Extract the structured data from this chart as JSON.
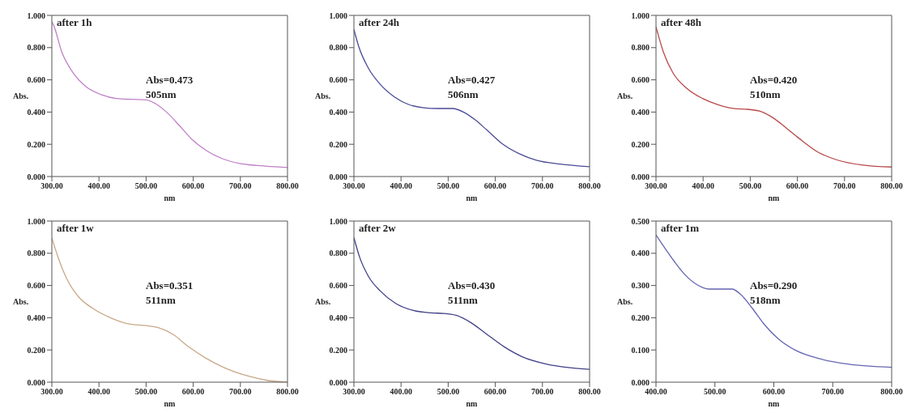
{
  "chart_data": [
    {
      "type": "line",
      "title": "after 1h",
      "xlabel": "nm",
      "ylabel": "Abs.",
      "marker": "none",
      "x": [
        300,
        303,
        322,
        341,
        373,
        405,
        437,
        469,
        500,
        520,
        545,
        571,
        596,
        628,
        660,
        698,
        736,
        800
      ],
      "series": [
        {
          "color": "#c080c8",
          "values": [
            0.96,
            0.944,
            0.766,
            0.661,
            0.556,
            0.508,
            0.484,
            0.479,
            0.476,
            0.452,
            0.395,
            0.315,
            0.234,
            0.161,
            0.113,
            0.081,
            0.068,
            0.056
          ]
        }
      ],
      "xlim": [
        300,
        800
      ],
      "ylim": [
        0,
        1
      ],
      "xticks": [
        {
          "value": 300,
          "label": "300.00"
        },
        {
          "value": 400,
          "label": "400.00"
        },
        {
          "value": 500,
          "label": "500.00"
        },
        {
          "value": 600,
          "label": "600.00"
        },
        {
          "value": 700,
          "label": "700.00"
        },
        {
          "value": 800,
          "label": "800.00"
        }
      ],
      "yticks": [
        {
          "value": 0,
          "label": "0.000"
        },
        {
          "value": 0.2,
          "label": "0.200"
        },
        {
          "value": 0.4,
          "label": "0.400"
        },
        {
          "value": 0.6,
          "label": "0.600"
        },
        {
          "value": 0.8,
          "label": "0.800"
        },
        {
          "value": 1,
          "label": "1.000"
        }
      ],
      "annotations": [
        "Abs=0.473",
        "505nm"
      ]
    },
    {
      "type": "line",
      "title": "after 24h",
      "xlabel": "nm",
      "ylabel": "Abs.",
      "marker": "none",
      "x": [
        300,
        311,
        331,
        355,
        386,
        417,
        448,
        478,
        509,
        534,
        558,
        583,
        614,
        651,
        687,
        737,
        800
      ],
      "series": [
        {
          "color": "#4a4a98",
          "values": [
            0.912,
            0.8,
            0.671,
            0.575,
            0.494,
            0.446,
            0.427,
            0.422,
            0.422,
            0.398,
            0.35,
            0.286,
            0.205,
            0.141,
            0.101,
            0.077,
            0.061
          ]
        }
      ],
      "xlim": [
        300,
        800
      ],
      "ylim": [
        0,
        1
      ],
      "xticks": [
        {
          "value": 300,
          "label": "300.00"
        },
        {
          "value": 400,
          "label": "400.00"
        },
        {
          "value": 500,
          "label": "500.00"
        },
        {
          "value": 600,
          "label": "600.00"
        },
        {
          "value": 700,
          "label": "700.00"
        },
        {
          "value": 800,
          "label": "800.00"
        }
      ],
      "yticks": [
        {
          "value": 0,
          "label": "0.000"
        },
        {
          "value": 0.2,
          "label": "0.200"
        },
        {
          "value": 0.4,
          "label": "0.400"
        },
        {
          "value": 0.6,
          "label": "0.600"
        },
        {
          "value": 0.8,
          "label": "0.800"
        },
        {
          "value": 1,
          "label": "1.000"
        }
      ],
      "annotations": [
        "Abs=0.427",
        "506nm"
      ]
    },
    {
      "type": "line",
      "title": "after 48h",
      "xlabel": "nm",
      "ylabel": "Abs.",
      "marker": "none",
      "x": [
        300,
        316,
        336,
        365,
        399,
        433,
        467,
        494,
        521,
        548,
        576,
        603,
        644,
        684,
        739,
        800
      ],
      "series": [
        {
          "color": "#b84848",
          "values": [
            0.929,
            0.77,
            0.643,
            0.548,
            0.484,
            0.444,
            0.421,
            0.417,
            0.405,
            0.365,
            0.302,
            0.238,
            0.151,
            0.103,
            0.071,
            0.059
          ]
        }
      ],
      "xlim": [
        300,
        800
      ],
      "ylim": [
        0,
        1
      ],
      "xticks": [
        {
          "value": 300,
          "label": "300.00"
        },
        {
          "value": 400,
          "label": "400.00"
        },
        {
          "value": 500,
          "label": "500.00"
        },
        {
          "value": 600,
          "label": "600.00"
        },
        {
          "value": 700,
          "label": "700.00"
        },
        {
          "value": 800,
          "label": "800.00"
        }
      ],
      "yticks": [
        {
          "value": 0,
          "label": "0.000"
        },
        {
          "value": 0.2,
          "label": "0.200"
        },
        {
          "value": 0.4,
          "label": "0.400"
        },
        {
          "value": 0.6,
          "label": "0.600"
        },
        {
          "value": 0.8,
          "label": "0.800"
        },
        {
          "value": 1,
          "label": "1.000"
        }
      ],
      "annotations": [
        "Abs=0.420",
        "510nm"
      ]
    },
    {
      "type": "line",
      "title": "after 1w",
      "xlabel": "nm",
      "ylabel": "Abs.",
      "marker": "none",
      "x": [
        300,
        313,
        331,
        357,
        388,
        426,
        464,
        501,
        526,
        558,
        589,
        627,
        665,
        715,
        759,
        800
      ],
      "series": [
        {
          "color": "#c8a888",
          "values": [
            0.895,
            0.778,
            0.646,
            0.529,
            0.456,
            0.398,
            0.361,
            0.351,
            0.339,
            0.295,
            0.222,
            0.149,
            0.091,
            0.039,
            0.01,
            0
          ]
        }
      ],
      "xlim": [
        300,
        800
      ],
      "ylim": [
        0,
        1
      ],
      "xticks": [
        {
          "value": 300,
          "label": "300.00"
        },
        {
          "value": 400,
          "label": "400.00"
        },
        {
          "value": 500,
          "label": "500.00"
        },
        {
          "value": 600,
          "label": "600.00"
        },
        {
          "value": 700,
          "label": "700.00"
        },
        {
          "value": 800,
          "label": "800.00"
        }
      ],
      "yticks": [
        {
          "value": 0,
          "label": "0.000"
        },
        {
          "value": 0.2,
          "label": "0.200"
        },
        {
          "value": 0.4,
          "label": "0.400"
        },
        {
          "value": 0.6,
          "label": "0.600"
        },
        {
          "value": 0.8,
          "label": "0.800"
        },
        {
          "value": 1,
          "label": "1.000"
        }
      ],
      "annotations": [
        "Abs=0.351",
        "511nm"
      ]
    },
    {
      "type": "line",
      "title": "after 2w",
      "xlabel": "nm",
      "ylabel": "Abs.",
      "marker": "none",
      "x": [
        300,
        312,
        331,
        356,
        388,
        426,
        464,
        491,
        517,
        548,
        580,
        619,
        657,
        708,
        759,
        800
      ],
      "series": [
        {
          "color": "#404088",
          "values": [
            0.897,
            0.777,
            0.656,
            0.566,
            0.49,
            0.445,
            0.43,
            0.427,
            0.415,
            0.37,
            0.302,
            0.219,
            0.158,
            0.113,
            0.09,
            0.08
          ]
        }
      ],
      "xlim": [
        300,
        800
      ],
      "ylim": [
        0,
        1
      ],
      "xticks": [
        {
          "value": 300,
          "label": "300.00"
        },
        {
          "value": 400,
          "label": "400.00"
        },
        {
          "value": 500,
          "label": "500.00"
        },
        {
          "value": 600,
          "label": "600.00"
        },
        {
          "value": 700,
          "label": "700.00"
        },
        {
          "value": 800,
          "label": "800.00"
        }
      ],
      "yticks": [
        {
          "value": 0,
          "label": "0.000"
        },
        {
          "value": 0.2,
          "label": "0.200"
        },
        {
          "value": 0.4,
          "label": "0.400"
        },
        {
          "value": 0.6,
          "label": "0.600"
        },
        {
          "value": 0.8,
          "label": "0.800"
        },
        {
          "value": 1,
          "label": "1.000"
        }
      ],
      "annotations": [
        "Abs=0.430",
        "511nm"
      ]
    },
    {
      "type": "line",
      "title": "after 1m",
      "xlabel": "nm",
      "ylabel": "Abs.",
      "marker": "none",
      "x": [
        400,
        411,
        431,
        450,
        470,
        490,
        509,
        529,
        544,
        564,
        583,
        608,
        637,
        677,
        726,
        800
      ],
      "series": [
        {
          "color": "#6464b4",
          "values": [
            0.457,
            0.427,
            0.375,
            0.332,
            0.302,
            0.289,
            0.289,
            0.289,
            0.272,
            0.228,
            0.181,
            0.134,
            0.099,
            0.073,
            0.056,
            0.046
          ]
        }
      ],
      "xlim": [
        400,
        800
      ],
      "ylim": [
        0,
        0.5
      ],
      "xticks": [
        {
          "value": 400,
          "label": "400.00"
        },
        {
          "value": 500,
          "label": "500.00"
        },
        {
          "value": 600,
          "label": "600.00"
        },
        {
          "value": 700,
          "label": "700.00"
        },
        {
          "value": 800,
          "label": "800.00"
        }
      ],
      "yticks": [
        {
          "value": 0,
          "label": "0.000"
        },
        {
          "value": 0.1,
          "label": "0.100"
        },
        {
          "value": 0.2,
          "label": "0.200"
        },
        {
          "value": 0.3,
          "label": "0.300"
        },
        {
          "value": 0.4,
          "label": "0.400"
        },
        {
          "value": 0.5,
          "label": "0.500"
        }
      ],
      "annotations": [
        "Abs=0.290",
        "518nm"
      ]
    }
  ]
}
